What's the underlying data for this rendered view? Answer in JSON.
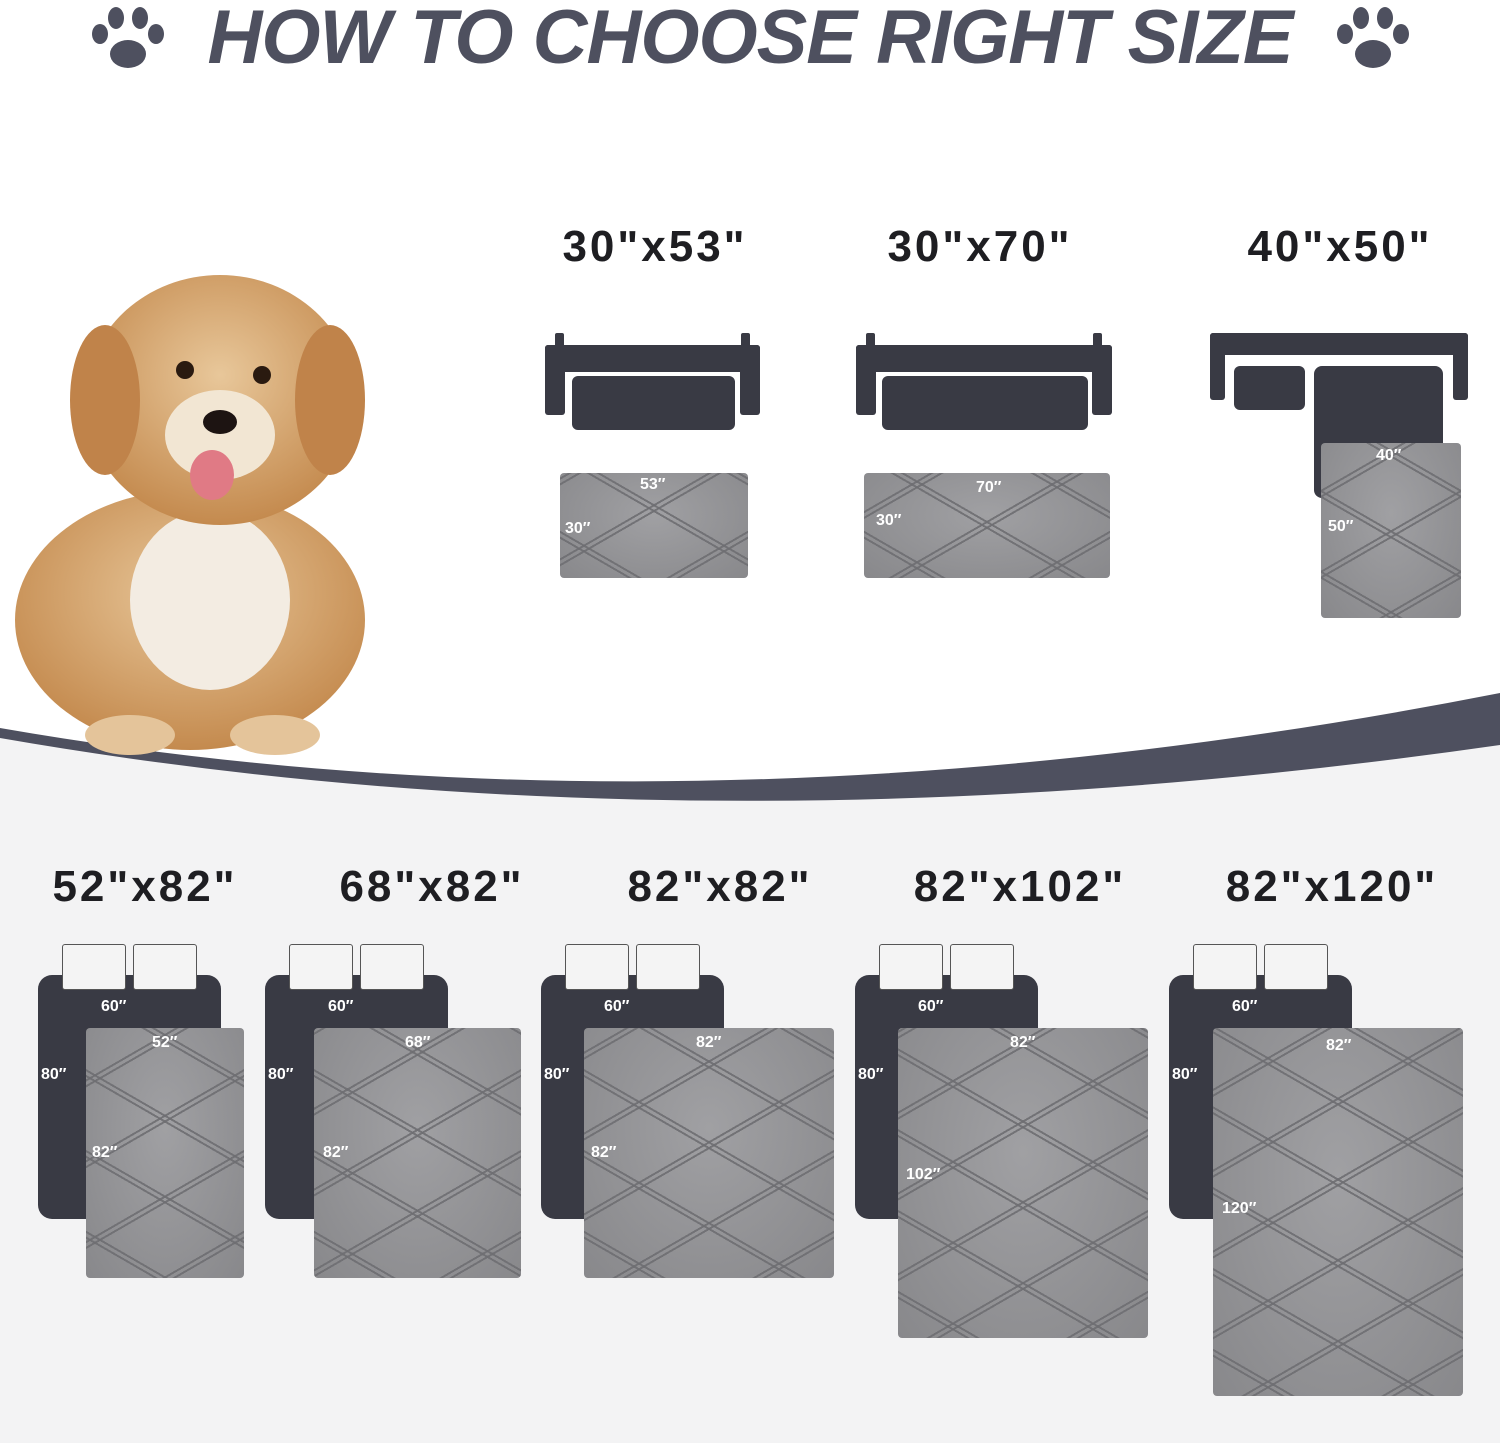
{
  "header": {
    "title": "HOW TO CHOOSE RIGHT SIZE",
    "icon_left": "paw-icon",
    "icon_right": "paw-icon"
  },
  "colors": {
    "title": "#4e505f",
    "furniture": "#393a44",
    "mat": "#8f8f92",
    "band": "#4e505f",
    "lower_bg": "#f3f3f4"
  },
  "sofa_sizes": [
    {
      "label": "30\"x53\"",
      "furniture": "sofa",
      "width_label": "53″",
      "height_label": "30″"
    },
    {
      "label": "30\"x70\"",
      "furniture": "sofa",
      "width_label": "70″",
      "height_label": "30″"
    },
    {
      "label": "40\"x50\"",
      "furniture": "sectional",
      "width_label": "40″",
      "height_label": "50″"
    }
  ],
  "bed_sizes": [
    {
      "label": "52\"x82\"",
      "bed_width": "60″",
      "bed_length": "80″",
      "width_label": "52″",
      "height_label": "82″"
    },
    {
      "label": "68\"x82\"",
      "bed_width": "60″",
      "bed_length": "80″",
      "width_label": "68″",
      "height_label": "82″"
    },
    {
      "label": "82\"x82\"",
      "bed_width": "60″",
      "bed_length": "80″",
      "width_label": "82″",
      "height_label": "82″"
    },
    {
      "label": "82\"x102\"",
      "bed_width": "60″",
      "bed_length": "80″",
      "width_label": "82″",
      "height_label": "102″"
    },
    {
      "label": "82\"x120\"",
      "bed_width": "60″",
      "bed_length": "80″",
      "width_label": "82″",
      "height_label": "120″"
    }
  ]
}
